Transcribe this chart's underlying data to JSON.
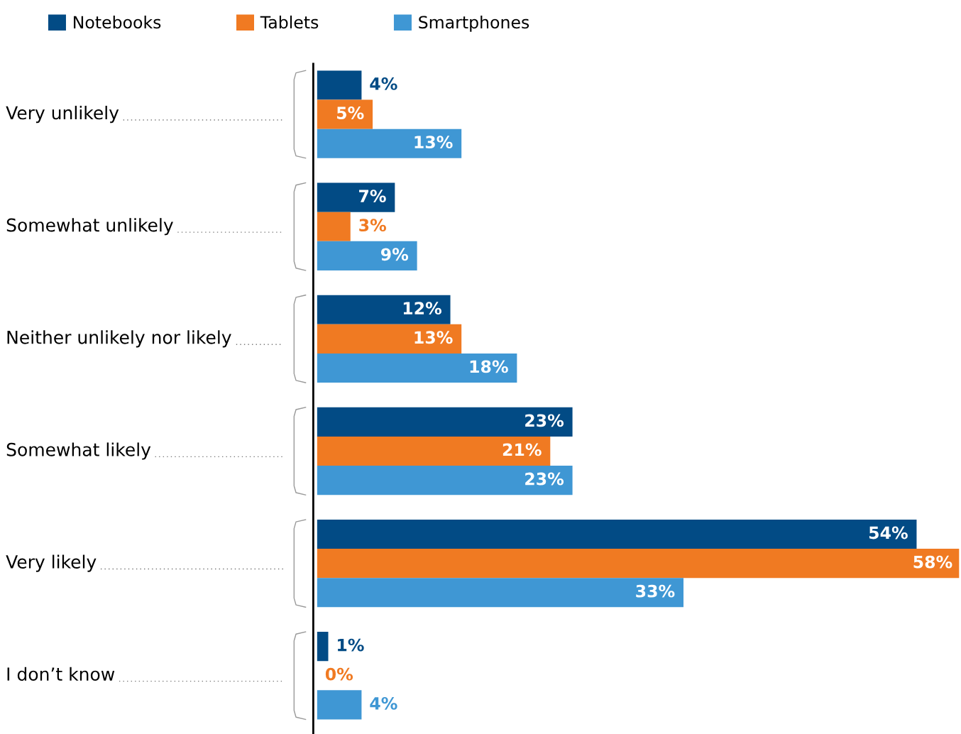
{
  "chart_data": {
    "type": "bar",
    "orientation": "horizontal",
    "legend": "top left",
    "data_labels": true,
    "categories": [
      "Very unlikely",
      "Somewhat unlikely",
      "Neither unlikely nor likely",
      "Somewhat likely",
      "Very likely",
      "I don’t know"
    ],
    "series": [
      {
        "name": "Notebooks",
        "color": "#024b85",
        "values": [
          4,
          7,
          12,
          23,
          54,
          1
        ],
        "value_labels": [
          "4%",
          "7%",
          "12%",
          "23%",
          "54%",
          "1%"
        ]
      },
      {
        "name": "Tablets",
        "color": "#f07a22",
        "values": [
          5,
          3,
          13,
          21,
          58,
          0
        ],
        "value_labels": [
          "5%",
          "3%",
          "13%",
          "21%",
          "58%",
          "0%"
        ]
      },
      {
        "name": "Smartphones",
        "color": "#3f97d4",
        "values": [
          13,
          9,
          18,
          23,
          33,
          4
        ],
        "value_labels": [
          "13%",
          "9%",
          "18%",
          "23%",
          "33%",
          "4%"
        ]
      }
    ]
  }
}
